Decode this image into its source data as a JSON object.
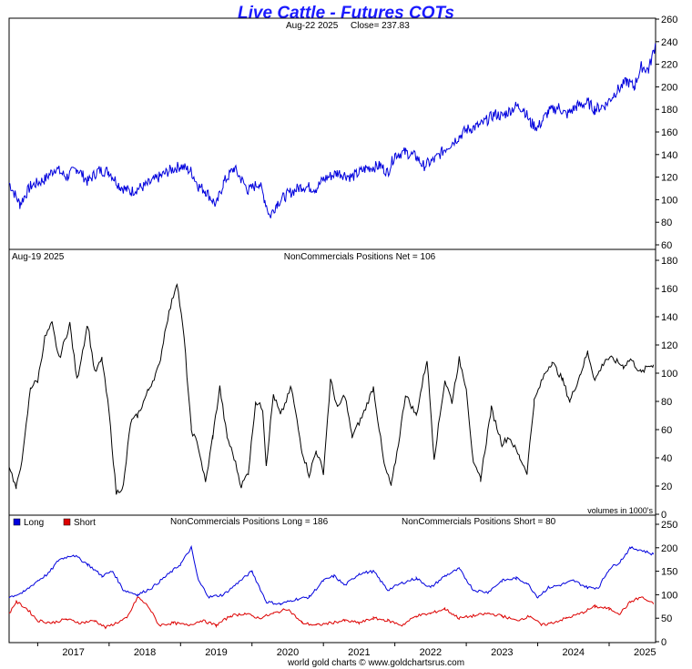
{
  "header": {
    "title": "Live Cattle - Futures COTs",
    "footer": "world gold charts © www.goldchartsrus.com"
  },
  "colors": {
    "title": "#1a1aff",
    "price": "#0000dd",
    "net": "#000000",
    "long": "#0000dd",
    "short": "#dd0000"
  },
  "chart_data": [
    {
      "type": "line",
      "name": "price-panel",
      "date_label": "Aug-22  2025",
      "close_label": "Close= 237.83",
      "ylim": [
        60,
        260
      ],
      "yticks": [
        60,
        80,
        100,
        120,
        140,
        160,
        180,
        200,
        220,
        240,
        260
      ],
      "xlim": [
        2016.6,
        2025.65
      ],
      "grid": false,
      "series": [
        {
          "x": [
            2016.6,
            2016.75,
            2016.9,
            2017.1,
            2017.25,
            2017.4,
            2017.55,
            2017.7,
            2017.85,
            2018.0,
            2018.15,
            2018.3,
            2018.4,
            2018.5,
            2018.7,
            2018.85,
            2019.0,
            2019.15,
            2019.25,
            2019.35,
            2019.5,
            2019.6,
            2019.75,
            2019.85,
            2019.95,
            2020.1,
            2020.18,
            2020.25,
            2020.35,
            2020.5,
            2020.7,
            2020.9,
            2021.0,
            2021.2,
            2021.4,
            2021.6,
            2021.8,
            2021.9,
            2022.0,
            2022.15,
            2022.3,
            2022.4,
            2022.55,
            2022.7,
            2022.9,
            2023.0,
            2023.2,
            2023.4,
            2023.5,
            2023.7,
            2023.8,
            2023.9,
            2024.0,
            2024.15,
            2024.3,
            2024.4,
            2024.55,
            2024.7,
            2024.8,
            2024.95,
            2025.1,
            2025.25,
            2025.35,
            2025.45,
            2025.55,
            2025.65
          ],
          "values": [
            115,
            96,
            112,
            118,
            128,
            120,
            128,
            116,
            126,
            125,
            112,
            107,
            110,
            112,
            120,
            126,
            130,
            125,
            112,
            108,
            95,
            115,
            128,
            118,
            108,
            115,
            100,
            85,
            97,
            105,
            112,
            110,
            118,
            124,
            120,
            128,
            130,
            124,
            140,
            142,
            138,
            130,
            135,
            145,
            156,
            162,
            166,
            176,
            174,
            183,
            181,
            168,
            164,
            178,
            182,
            175,
            183,
            186,
            180,
            184,
            196,
            205,
            200,
            218,
            215,
            237.83
          ]
        }
      ]
    },
    {
      "type": "line",
      "name": "net-panel",
      "date_label": "Aug-19  2025",
      "label": "NonCommercials Positions Net = 106",
      "units_note": "volumes in 1000's",
      "ylim": [
        0,
        180
      ],
      "yticks": [
        0,
        20,
        40,
        60,
        80,
        100,
        120,
        140,
        160,
        180
      ],
      "xlim": [
        2016.6,
        2025.65
      ],
      "grid": false,
      "series": [
        {
          "x": [
            2016.6,
            2016.7,
            2016.8,
            2016.9,
            2017.0,
            2017.1,
            2017.2,
            2017.3,
            2017.45,
            2017.55,
            2017.7,
            2017.8,
            2017.9,
            2018.0,
            2018.1,
            2018.2,
            2018.3,
            2018.4,
            2018.55,
            2018.7,
            2018.8,
            2018.95,
            2019.05,
            2019.15,
            2019.25,
            2019.35,
            2019.45,
            2019.55,
            2019.65,
            2019.75,
            2019.85,
            2019.95,
            2020.05,
            2020.15,
            2020.2,
            2020.3,
            2020.4,
            2020.55,
            2020.7,
            2020.8,
            2020.9,
            2021.0,
            2021.1,
            2021.2,
            2021.3,
            2021.4,
            2021.55,
            2021.7,
            2021.85,
            2021.95,
            2022.05,
            2022.15,
            2022.3,
            2022.45,
            2022.55,
            2022.7,
            2022.8,
            2022.9,
            2023.0,
            2023.1,
            2023.2,
            2023.35,
            2023.5,
            2023.6,
            2023.75,
            2023.85,
            2023.95,
            2024.1,
            2024.2,
            2024.35,
            2024.45,
            2024.6,
            2024.7,
            2024.8,
            2024.95,
            2025.05,
            2025.2,
            2025.3,
            2025.45,
            2025.55,
            2025.62
          ],
          "values": [
            35,
            18,
            45,
            90,
            95,
            125,
            135,
            110,
            135,
            95,
            135,
            100,
            110,
            72,
            15,
            20,
            65,
            70,
            88,
            105,
            135,
            165,
            125,
            60,
            48,
            22,
            55,
            90,
            55,
            40,
            20,
            30,
            80,
            75,
            35,
            85,
            70,
            90,
            45,
            28,
            45,
            30,
            95,
            75,
            85,
            55,
            70,
            90,
            35,
            20,
            50,
            85,
            70,
            110,
            40,
            95,
            80,
            110,
            90,
            35,
            25,
            75,
            50,
            55,
            40,
            30,
            80,
            100,
            108,
            95,
            80,
            100,
            115,
            95,
            110,
            110,
            105,
            110,
            100,
            105,
            106
          ]
        }
      ]
    },
    {
      "type": "line",
      "name": "long-short-panel",
      "long_label": "NonCommercials Positions Long = 186",
      "short_label": "NonCommercials Positions Short = 80",
      "ylim": [
        0,
        250
      ],
      "yticks": [
        0,
        50,
        100,
        150,
        200,
        250
      ],
      "xlim": [
        2016.6,
        2025.65
      ],
      "x_tick_labels": [
        "2017",
        "2018",
        "2019",
        "2020",
        "2021",
        "2022",
        "2023",
        "2024",
        "2025"
      ],
      "legend_position": "top-left",
      "grid": false,
      "series": [
        {
          "name": "Long",
          "x": [
            2016.6,
            2016.8,
            2017.0,
            2017.15,
            2017.3,
            2017.5,
            2017.7,
            2017.9,
            2018.05,
            2018.2,
            2018.4,
            2018.6,
            2018.8,
            2019.0,
            2019.15,
            2019.25,
            2019.4,
            2019.6,
            2019.8,
            2020.0,
            2020.2,
            2020.4,
            2020.6,
            2020.8,
            2021.0,
            2021.15,
            2021.3,
            2021.5,
            2021.7,
            2021.9,
            2022.1,
            2022.3,
            2022.5,
            2022.7,
            2022.9,
            2023.1,
            2023.3,
            2023.5,
            2023.7,
            2023.85,
            2024.0,
            2024.15,
            2024.3,
            2024.5,
            2024.7,
            2024.85,
            2025.0,
            2025.15,
            2025.3,
            2025.45,
            2025.62
          ],
          "values": [
            95,
            105,
            130,
            145,
            175,
            185,
            165,
            140,
            150,
            110,
            100,
            115,
            140,
            165,
            200,
            130,
            95,
            100,
            125,
            150,
            85,
            80,
            90,
            95,
            130,
            140,
            120,
            145,
            150,
            110,
            125,
            135,
            115,
            140,
            155,
            110,
            105,
            130,
            135,
            125,
            95,
            115,
            120,
            130,
            115,
            115,
            155,
            170,
            200,
            195,
            186
          ]
        },
        {
          "name": "Short",
          "x": [
            2016.6,
            2016.7,
            2016.85,
            2017.0,
            2017.2,
            2017.4,
            2017.6,
            2017.8,
            2017.95,
            2018.1,
            2018.25,
            2018.4,
            2018.55,
            2018.7,
            2018.9,
            2019.1,
            2019.3,
            2019.5,
            2019.7,
            2019.9,
            2020.1,
            2020.3,
            2020.5,
            2020.7,
            2020.9,
            2021.1,
            2021.3,
            2021.5,
            2021.7,
            2021.9,
            2022.1,
            2022.3,
            2022.5,
            2022.7,
            2022.9,
            2023.1,
            2023.3,
            2023.5,
            2023.7,
            2023.9,
            2024.05,
            2024.2,
            2024.4,
            2024.6,
            2024.8,
            2025.0,
            2025.15,
            2025.3,
            2025.45,
            2025.62
          ],
          "values": [
            60,
            85,
            70,
            45,
            40,
            48,
            40,
            45,
            30,
            40,
            50,
            95,
            75,
            35,
            40,
            35,
            45,
            35,
            55,
            60,
            50,
            60,
            70,
            40,
            35,
            40,
            45,
            40,
            50,
            45,
            35,
            55,
            60,
            70,
            50,
            55,
            60,
            55,
            45,
            55,
            35,
            40,
            50,
            60,
            75,
            70,
            60,
            85,
            95,
            80
          ]
        }
      ]
    }
  ]
}
